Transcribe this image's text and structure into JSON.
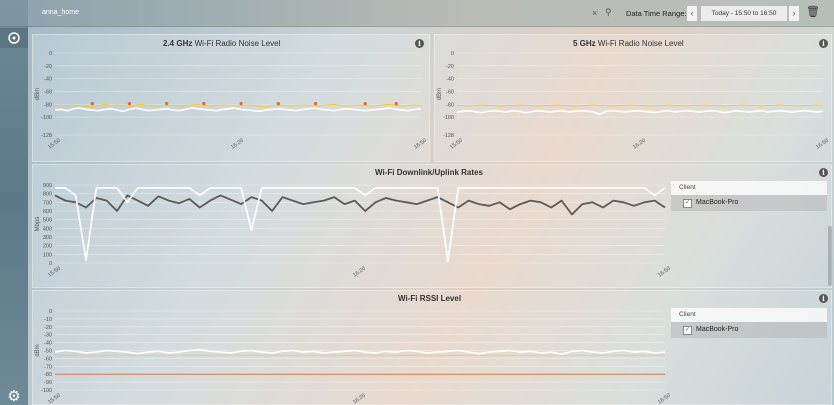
{
  "header": {
    "site_name": "anna_home",
    "datetime_label": "Data Time Range:",
    "datetime_value": "Today - 15:50 to 16:50",
    "prev_icon": "chevron-left-icon",
    "next_icon": "chevron-right-icon"
  },
  "panels": {
    "noise24": {
      "band": "2.4 GHz",
      "title": "Wi-Fi Radio Noise Level"
    },
    "noise5": {
      "band": "5 GHz",
      "title": "Wi-Fi Radio Noise Level"
    },
    "rates": {
      "title": "Wi-Fi Downlink/Uplink Rates"
    },
    "rssi": {
      "title": "Wi-Fi RSSI Level"
    }
  },
  "clients": {
    "header": "Client",
    "rates_client": "MacBook-Pro",
    "rssi_client": "MacBook-Pro"
  },
  "chart_data": [
    {
      "type": "line",
      "title": "2.4 GHz Wi-Fi Radio Noise Level",
      "ylabel": "dBm",
      "ylim": [
        -128,
        0
      ],
      "yticks": [
        0,
        -20,
        -40,
        -60,
        -80,
        -100,
        -128
      ],
      "xticks": [
        "15:50",
        "16:20",
        "16:50"
      ],
      "colors": {
        "line": "#ffffff",
        "threshold": "#f5c842",
        "spike": "#e8642a"
      },
      "series": [
        {
          "values": [
            -89,
            -88,
            -90,
            -87,
            -86,
            -88,
            -89,
            -90,
            -88,
            -87,
            -89,
            -91,
            -88,
            -86,
            -88,
            -90,
            -89,
            -88,
            -87,
            -89,
            -90,
            -88,
            -86,
            -87,
            -88,
            -89,
            -90,
            -88,
            -87,
            -86,
            -88,
            -89,
            -90,
            -91,
            -89,
            -88,
            -87,
            -88,
            -89,
            -90,
            -88,
            -87,
            -86,
            -88,
            -89,
            -90,
            -88,
            -87,
            -88,
            -89,
            -90,
            -89,
            -88,
            -87,
            -86,
            -88,
            -89,
            -90,
            -88,
            -87
          ]
        },
        {
          "values": [
            -82,
            -83,
            -82,
            -81,
            -82,
            -83,
            -84,
            -82,
            -80,
            -82,
            -81,
            -82,
            -83,
            -81,
            -80,
            -82,
            -83,
            -82,
            -81,
            -82,
            -83,
            -82,
            -81,
            -80,
            -82,
            -83,
            -82,
            -81,
            -82,
            -83,
            -82,
            -81,
            -82,
            -83,
            -84,
            -82,
            -81,
            -82,
            -83,
            -82,
            -81,
            -82,
            -83,
            -82,
            -81,
            -80,
            -82,
            -83,
            -82,
            -81,
            -82,
            -83,
            -82,
            -81,
            -80,
            -82,
            -83,
            -82,
            -81,
            -82
          ]
        }
      ]
    },
    {
      "type": "line",
      "title": "5 GHz Wi-Fi Radio Noise Level",
      "ylabel": "dBm",
      "ylim": [
        -128,
        0
      ],
      "yticks": [
        0,
        -20,
        -40,
        -60,
        -80,
        -100,
        -128
      ],
      "xticks": [
        "15:50",
        "16:20",
        "16:50"
      ],
      "colors": {
        "line": "#ffffff",
        "threshold": "#f5c842"
      },
      "series": [
        {
          "values": [
            -92,
            -91,
            -90,
            -92,
            -93,
            -91,
            -90,
            -91,
            -92,
            -90,
            -91,
            -93,
            -92,
            -90,
            -91,
            -92,
            -91,
            -90,
            -92,
            -91,
            -90,
            -91,
            -92,
            -96,
            -91,
            -90,
            -91,
            -92,
            -91,
            -90,
            -91,
            -92,
            -93,
            -91,
            -90,
            -92,
            -91,
            -90,
            -91,
            -92,
            -91,
            -90,
            -91,
            -93,
            -92,
            -90,
            -91,
            -92,
            -91,
            -90,
            -92,
            -91,
            -90,
            -91,
            -92,
            -91,
            -90,
            -91,
            -92,
            -91
          ]
        },
        {
          "values": [
            -82,
            -82,
            -83,
            -82,
            -81,
            -82,
            -82,
            -83,
            -82,
            -82,
            -81,
            -82,
            -82,
            -83,
            -82,
            -82,
            -81,
            -82,
            -82,
            -83,
            -82,
            -82,
            -81,
            -82,
            -82,
            -83,
            -82,
            -82,
            -81,
            -82,
            -82,
            -83,
            -82,
            -82,
            -81,
            -82,
            -82,
            -83,
            -82,
            -82,
            -81,
            -82,
            -82,
            -83,
            -82,
            -82,
            -81,
            -82,
            -82,
            -83,
            -82,
            -82,
            -81,
            -82,
            -82,
            -83,
            -82,
            -82,
            -81,
            -82
          ]
        }
      ]
    },
    {
      "type": "line",
      "title": "Wi-Fi Downlink/Uplink Rates",
      "ylabel": "Mbps",
      "ylim": [
        0,
        900
      ],
      "yticks": [
        900,
        800,
        700,
        600,
        500,
        400,
        300,
        200,
        100,
        0
      ],
      "xticks": [
        "15:50",
        "16:20",
        "16:50"
      ],
      "colors": {
        "downlink": "#ffffff",
        "uplink": "#5a5a5a"
      },
      "series": [
        {
          "values": [
            866,
            866,
            780,
            30,
            866,
            866,
            866,
            700,
            866,
            866,
            866,
            866,
            866,
            866,
            780,
            866,
            866,
            866,
            866,
            380,
            866,
            866,
            866,
            866,
            866,
            866,
            866,
            866,
            866,
            866,
            780,
            866,
            866,
            866,
            866,
            866,
            866,
            866,
            20,
            866,
            866,
            866,
            866,
            866,
            866,
            866,
            866,
            866,
            866,
            866,
            866,
            866,
            866,
            866,
            866,
            866,
            866,
            866,
            780,
            866
          ]
        },
        {
          "values": [
            780,
            720,
            700,
            640,
            750,
            720,
            600,
            780,
            720,
            660,
            770,
            720,
            690,
            740,
            640,
            720,
            780,
            730,
            680,
            760,
            720,
            600,
            760,
            720,
            680,
            700,
            720,
            760,
            680,
            720,
            600,
            700,
            750,
            720,
            700,
            680,
            720,
            760,
            700,
            640,
            720,
            680,
            660,
            700,
            620,
            680,
            720,
            700,
            640,
            720,
            560,
            680,
            700,
            640,
            720,
            700,
            660,
            700,
            720,
            640
          ]
        }
      ]
    },
    {
      "type": "line",
      "title": "Wi-Fi RSSI Level",
      "ylabel": "dBm",
      "ylim": [
        -100,
        0
      ],
      "yticks": [
        0,
        -10,
        -20,
        -30,
        -40,
        -50,
        -60,
        -70,
        -80,
        -90,
        -100
      ],
      "xticks": [
        "15:50",
        "16:20",
        "16:50"
      ],
      "colors": {
        "rssi": "#ffffff",
        "warn": "#f5c842",
        "critical": "#e8642a"
      },
      "series": [
        {
          "values": [
            -52,
            -50,
            -51,
            -53,
            -52,
            -50,
            -51,
            -52,
            -54,
            -52,
            -51,
            -53,
            -52,
            -50,
            -49,
            -51,
            -52,
            -53,
            -51,
            -50,
            -52,
            -53,
            -51,
            -50,
            -52,
            -51,
            -53,
            -52,
            -51,
            -50,
            -52,
            -53,
            -51,
            -52,
            -50,
            -51,
            -53,
            -52,
            -51,
            -50,
            -52,
            -54,
            -52,
            -51,
            -50,
            -52,
            -51,
            -53,
            -52,
            -55,
            -51,
            -50,
            -52,
            -53,
            -51,
            -50,
            -52,
            -51,
            -53,
            -52
          ]
        }
      ]
    }
  ]
}
